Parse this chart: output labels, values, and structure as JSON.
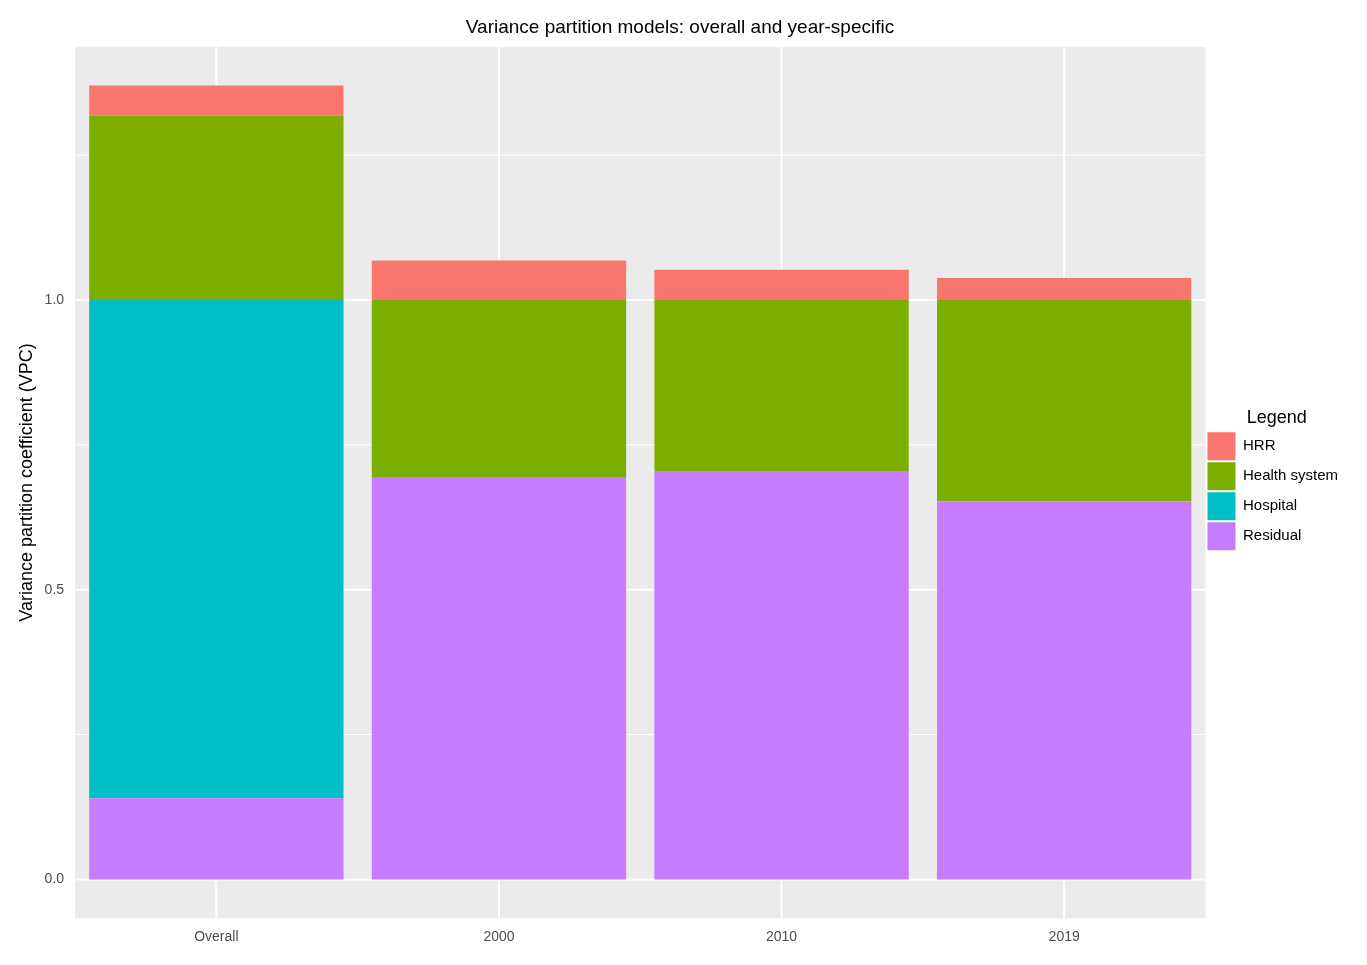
{
  "chart_data": {
    "type": "bar",
    "title": "Variance partition models: overall and year-specific",
    "ylabel": "Variance partition coefficient (VPC)",
    "categories": [
      "Overall",
      "2000",
      "2010",
      "2019"
    ],
    "stacked": true,
    "series": [
      {
        "name": "Residual",
        "color": "#c77cff",
        "values": [
          0.14,
          0.693,
          0.705,
          0.652
        ]
      },
      {
        "name": "Hospital",
        "color": "#00bfc4",
        "values": [
          0.86,
          null,
          null,
          null
        ]
      },
      {
        "name": "Health system",
        "color": "#7cae00",
        "values": [
          0.318,
          0.307,
          0.295,
          0.348
        ]
      },
      {
        "name": "HRR",
        "color": "#f8766d",
        "values": [
          0.052,
          0.068,
          0.052,
          0.038
        ]
      }
    ],
    "ylim": [
      -0.067,
      1.437
    ],
    "yticks": [
      {
        "value": 0,
        "label": "0.0"
      },
      {
        "value": 0.5,
        "label": "0.5"
      },
      {
        "value": 1,
        "label": "1.0"
      }
    ],
    "grid": true,
    "legend": "right",
    "legend_title": "Legend"
  }
}
